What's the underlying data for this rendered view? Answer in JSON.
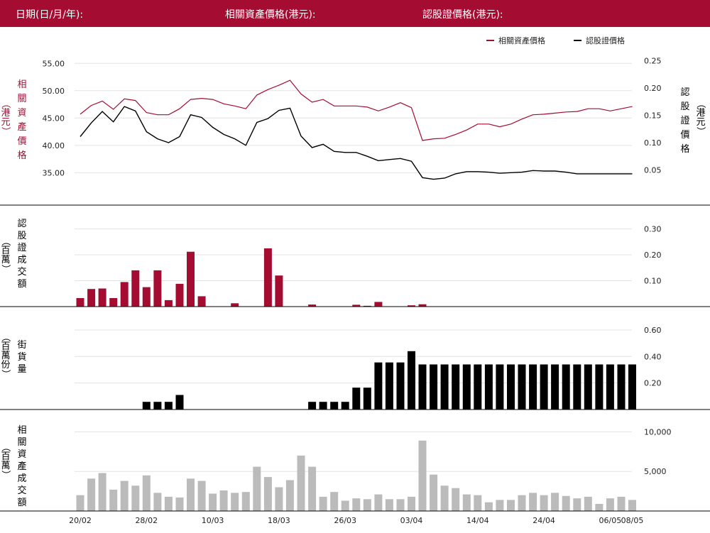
{
  "header": {
    "date_label": "日期(日/月/年):",
    "underlying_label": "相關資產價格(港元):",
    "warrant_label": "認股證價格(港元):"
  },
  "colors": {
    "red": "#a50c32",
    "black": "#000000",
    "gray": "#bbbbbb",
    "grid": "#e3e3e3"
  },
  "chart_data": [
    {
      "type": "line",
      "panel": "price",
      "legend": [
        "相關資產價格",
        "認股證價格"
      ],
      "left_axis": {
        "label_chars": [
          "相",
          "關",
          "資",
          "產",
          "價",
          "格"
        ],
        "paren": "（港元）",
        "ticks": [
          "55.00",
          "50.00",
          "45.00",
          "40.00",
          "35.00"
        ],
        "tick_values": [
          55,
          50,
          45,
          40,
          35
        ],
        "ylim": [
          30.5,
          57.5
        ]
      },
      "right_axis": {
        "label_chars": [
          "認",
          "股",
          "證",
          "價",
          "格"
        ],
        "paren": "（港元）",
        "ticks": [
          "0.25",
          "0.20",
          "0.15",
          "0.10",
          "0.05"
        ],
        "tick_values": [
          0.25,
          0.2,
          0.15,
          0.1,
          0.05
        ],
        "ylim": [
          0.0,
          0.27
        ]
      },
      "series": [
        {
          "name": "相關資產價格",
          "axis": "left",
          "values": [
            45.7,
            47.3,
            48.1,
            46.6,
            48.5,
            48.2,
            46.0,
            45.6,
            45.6,
            46.7,
            48.4,
            48.6,
            48.4,
            47.6,
            47.2,
            46.7,
            49.2,
            50.2,
            51.0,
            51.9,
            49.4,
            47.9,
            48.4,
            47.2,
            47.2,
            47.2,
            47.0,
            46.3,
            47.0,
            47.8,
            46.9,
            40.9,
            41.2,
            41.3,
            42.0,
            42.8,
            43.9,
            43.9,
            43.4,
            43.9,
            44.8,
            45.6,
            45.7,
            45.9,
            46.1,
            46.2,
            46.7,
            46.7,
            46.3,
            46.7,
            47.1
          ]
        },
        {
          "name": "認股證價格",
          "axis": "right",
          "values": [
            0.111,
            0.136,
            0.157,
            0.138,
            0.166,
            0.158,
            0.12,
            0.107,
            0.1,
            0.111,
            0.151,
            0.146,
            0.128,
            0.115,
            0.107,
            0.095,
            0.137,
            0.144,
            0.159,
            0.163,
            0.112,
            0.091,
            0.097,
            0.084,
            0.082,
            0.082,
            0.075,
            0.067,
            0.069,
            0.071,
            0.066,
            0.036,
            0.033,
            0.035,
            0.043,
            0.047,
            0.047,
            0.046,
            0.044,
            0.045,
            0.046,
            0.049,
            0.048,
            0.048,
            0.046,
            0.043,
            0.043,
            0.043,
            0.043,
            0.043,
            0.043
          ]
        }
      ]
    },
    {
      "type": "bar",
      "panel": "warrant_turnover",
      "label_chars": [
        "認",
        "股",
        "證",
        "成",
        "交",
        "額"
      ],
      "paren": "（百萬）",
      "ticks": [
        "0.30",
        "0.20",
        "0.10"
      ],
      "tick_values": [
        0.3,
        0.2,
        0.1
      ],
      "ylim": [
        0,
        0.34
      ],
      "values": [
        0.033,
        0.068,
        0.07,
        0.033,
        0.095,
        0.14,
        0.075,
        0.14,
        0.025,
        0.088,
        0.212,
        0.04,
        0,
        0,
        0.013,
        0,
        0,
        0.225,
        0.12,
        0,
        0,
        0.008,
        0,
        0,
        0,
        0.007,
        0.003,
        0.018,
        0,
        0,
        0.005,
        0.009,
        0,
        0,
        0,
        0,
        0,
        0,
        0,
        0,
        0,
        0,
        0,
        0,
        0,
        0,
        0,
        0,
        0,
        0,
        0
      ]
    },
    {
      "type": "bar",
      "panel": "outstanding",
      "label_chars": [
        "街",
        "貨",
        "量"
      ],
      "paren": "（百萬份）",
      "ticks": [
        "0.60",
        "0.40",
        "0.20"
      ],
      "tick_values": [
        0.6,
        0.4,
        0.2
      ],
      "ylim": [
        0,
        0.68
      ],
      "values": [
        0,
        0,
        0,
        0,
        0,
        0,
        0.058,
        0.058,
        0.058,
        0.11,
        0,
        0,
        0,
        0,
        0,
        0,
        0,
        0,
        0,
        0,
        0,
        0.058,
        0.058,
        0.058,
        0.058,
        0.165,
        0.165,
        0.355,
        0.355,
        0.355,
        0.44,
        0.34,
        0.34,
        0.34,
        0.34,
        0.34,
        0.34,
        0.34,
        0.34,
        0.34,
        0.34,
        0.34,
        0.34,
        0.34,
        0.34,
        0.34,
        0.34,
        0.34,
        0.34,
        0.34,
        0.34
      ]
    },
    {
      "type": "bar",
      "panel": "underlying_turnover",
      "label_chars": [
        "相",
        "關",
        "資",
        "產",
        "成",
        "交",
        "額"
      ],
      "paren": "（百萬）",
      "ticks": [
        "10,000",
        "5,000"
      ],
      "tick_values": [
        10000,
        5000
      ],
      "ylim": [
        0,
        11300
      ],
      "values": [
        2000,
        4100,
        4800,
        2700,
        3800,
        3200,
        4500,
        2300,
        1800,
        1700,
        4100,
        3800,
        2200,
        2600,
        2300,
        2400,
        5600,
        4300,
        3000,
        3900,
        7000,
        5600,
        1800,
        2400,
        1300,
        1600,
        1500,
        2100,
        1500,
        1500,
        1800,
        8900,
        4600,
        3200,
        2900,
        2100,
        2000,
        1100,
        1400,
        1400,
        2000,
        2300,
        2000,
        2300,
        1900,
        1600,
        1800,
        900,
        1600,
        1800,
        1400
      ],
      "x_ticks": [
        {
          "i": 0,
          "label": "20/02"
        },
        {
          "i": 6,
          "label": "28/02"
        },
        {
          "i": 12,
          "label": "10/03"
        },
        {
          "i": 18,
          "label": "18/03"
        },
        {
          "i": 24,
          "label": "26/03"
        },
        {
          "i": 30,
          "label": "03/04"
        },
        {
          "i": 36,
          "label": "14/04"
        },
        {
          "i": 42,
          "label": "24/04"
        },
        {
          "i": 48,
          "label": "06/05"
        },
        {
          "i": 50,
          "label": "08/05"
        }
      ]
    }
  ]
}
